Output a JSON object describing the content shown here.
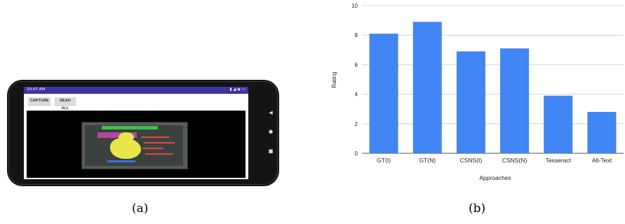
{
  "panel_a": {
    "caption": "(a)",
    "status_time": "10:47 AM",
    "buttons": {
      "capture": "CAPTURE",
      "read_all": "READ ALL"
    },
    "nav_icons": [
      "back-icon",
      "home-icon",
      "recent-apps-icon"
    ]
  },
  "panel_b": {
    "caption": "(b)"
  },
  "chart_data": {
    "type": "bar",
    "categories": [
      "GT(I)",
      "GT(N)",
      "CSNS(I)",
      "CSNS(N)",
      "Tesseract",
      "Alt-Text"
    ],
    "values": [
      8.1,
      8.9,
      6.9,
      7.1,
      3.9,
      2.8
    ],
    "title": "",
    "xlabel": "Approaches",
    "ylabel": "Rating",
    "ylim": [
      0,
      10
    ],
    "yticks": [
      0,
      2,
      4,
      6,
      8,
      10
    ],
    "grid": true,
    "bar_color": "#4285f4",
    "grid_color": "#cccccc"
  }
}
